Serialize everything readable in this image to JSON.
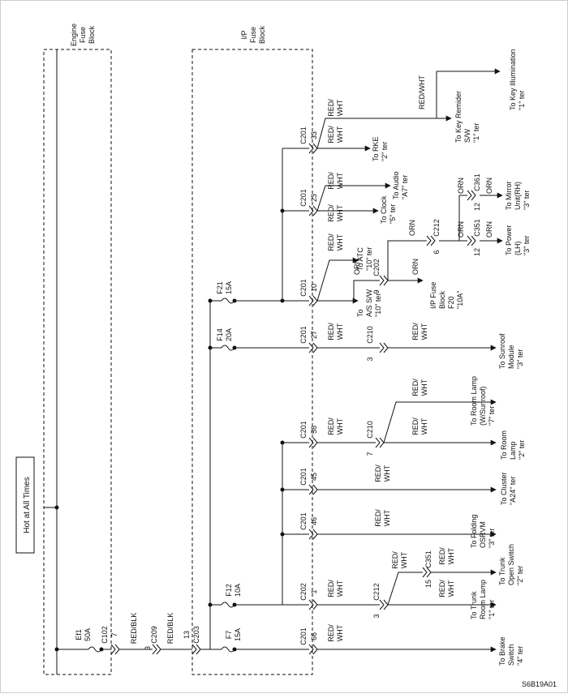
{
  "source_label": "Hot at All Times",
  "blocks": {
    "engine_fuse_block": [
      "Engine",
      "Fuse",
      "Block"
    ],
    "ip_fuse_block": [
      "I/P",
      "Fuse",
      "Block"
    ]
  },
  "figure_code": "S6B19A01",
  "fuses": [
    {
      "id": "ef1",
      "name": "Ef1",
      "rating": "50A"
    },
    {
      "id": "f7",
      "name": "F7",
      "rating": "15A"
    },
    {
      "id": "f12",
      "name": "F12",
      "rating": "10A"
    },
    {
      "id": "f14",
      "name": "F14",
      "rating": "20A"
    },
    {
      "id": "f21",
      "name": "F21",
      "rating": "15A"
    }
  ],
  "feed": {
    "c102": {
      "name": "C102",
      "pin": "7"
    },
    "wire1": "RED/BLK",
    "c209": {
      "name": "C209",
      "pin": "3"
    },
    "wire2": "RED/BLK",
    "c203": {
      "name": "C203",
      "pin": "13"
    }
  },
  "connectors": {
    "brake": {
      "name": "C201",
      "pin": "66"
    },
    "trunk": {
      "name": "C202",
      "pin": "1"
    },
    "trunk_sub": {
      "name": "C212",
      "pin": "3"
    },
    "trunk_sw": {
      "name": "C351",
      "pin": "15"
    },
    "folding": {
      "name": "C201",
      "pin": "46"
    },
    "cluster": {
      "name": "C201",
      "pin": "45"
    },
    "room": {
      "name": "C201",
      "pin": "58"
    },
    "room_sub": {
      "name": "C210",
      "pin": "7"
    },
    "sunroof": {
      "name": "C201",
      "pin": "27"
    },
    "sunroof_sub": {
      "name": "C210",
      "pin": "3"
    },
    "atc": {
      "name": "C201",
      "pin": "10"
    },
    "atc_sub": {
      "name": "C202",
      "pin": "9"
    },
    "mirror_c212": {
      "name": "C212",
      "pin": "6"
    },
    "mirror_c351": {
      "name": "C351",
      "pin": "12"
    },
    "mirror_c361": {
      "name": "C361",
      "pin": "12"
    },
    "clock": {
      "name": "C201",
      "pin": "23"
    },
    "rke": {
      "name": "C201",
      "pin": "33"
    }
  },
  "wire_colors": {
    "red_wht": [
      "RED/",
      "WHT"
    ],
    "red_wht_full": "RED/WHT",
    "orn": "ORN"
  },
  "destinations": {
    "brake": [
      "To Brake",
      "Switch",
      "\"4\" ter"
    ],
    "trunk_lamp": [
      "To Trunk",
      "Room Lamp",
      "\"1\" ter"
    ],
    "trunk_switch": [
      "To Trunk",
      "Open Switch",
      "\"2\" ter"
    ],
    "folding": [
      "To Folding",
      "OSRVM",
      "\"3\" ter"
    ],
    "cluster": [
      "To Cluster",
      "\"A24\" ter"
    ],
    "room_lamp": [
      "To Room",
      "Lamp",
      "\"2\" ter"
    ],
    "room_sunroof": [
      "To Room Lamp",
      "(W/Sunroof)",
      "\"7\" ter"
    ],
    "sunroof": [
      "To Sunroof",
      "Module",
      "\"3\" ter"
    ],
    "atc": [
      "To ATC",
      "\"10\" ter"
    ],
    "as_sw": [
      "To",
      "A/S S/W",
      "\"10\" ter"
    ],
    "ip_fuse": [
      "I/P Fuse",
      "Block",
      "F20",
      "\"10A\""
    ],
    "power": [
      "To Power",
      "(LH)",
      "\"3\" ter"
    ],
    "mirror": [
      "To Mirror",
      "Unit(RH)",
      "\"3\" ter"
    ],
    "clock": [
      "To Clock",
      "\"5\" ter"
    ],
    "audio": [
      "To Audio",
      "\"A7\" ter"
    ],
    "rke": [
      "To RKE",
      "\"2\" ter"
    ],
    "key_reminder": [
      "To Key Remider",
      "S/W",
      "\"1\" ter"
    ],
    "key_illum": [
      "To Key Illumination",
      "\"1\" ter"
    ]
  }
}
